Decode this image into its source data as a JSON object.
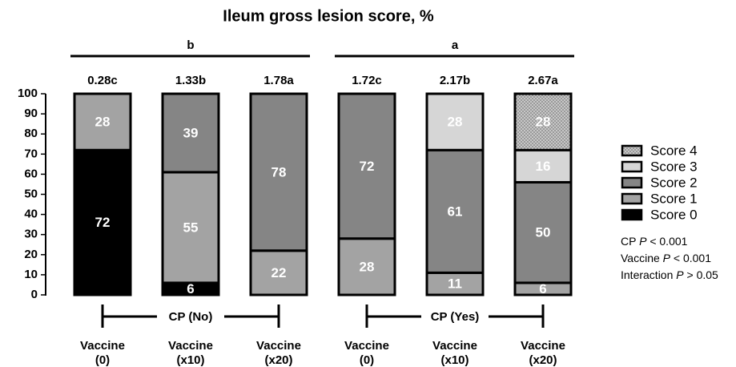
{
  "chart_data": {
    "type": "stacked_bar",
    "title": "Ileum gross lesion score, %",
    "categories": [
      [
        "Vaccine",
        "(0)"
      ],
      [
        "Vaccine",
        "(x10)"
      ],
      [
        "Vaccine",
        "(x20)"
      ],
      [
        "Vaccine",
        "(0)"
      ],
      [
        "Vaccine",
        "(x10)"
      ],
      [
        "Vaccine",
        "(x20)"
      ]
    ],
    "top_labels": [
      "0.28c",
      "1.33b",
      "1.78a",
      "1.72c",
      "2.17b",
      "2.67a"
    ],
    "groups": [
      {
        "label": "CP (No)",
        "letter": "b",
        "from": 0,
        "to": 2
      },
      {
        "label": "CP (Yes)",
        "letter": "a",
        "from": 3,
        "to": 5
      }
    ],
    "series": [
      {
        "name": "Score 0",
        "color": "#000000",
        "values": [
          72,
          6,
          null,
          null,
          null,
          null
        ]
      },
      {
        "name": "Score 1",
        "color": "#a3a3a3",
        "values": [
          28,
          55,
          22,
          28,
          11,
          6
        ]
      },
      {
        "name": "Score 2",
        "color": "#858585",
        "values": [
          null,
          39,
          78,
          72,
          61,
          50
        ]
      },
      {
        "name": "Score 3",
        "color": "#d6d6d6",
        "values": [
          null,
          null,
          null,
          null,
          28,
          16
        ]
      },
      {
        "name": "Score 4",
        "color": "#b5b5b5",
        "pattern": "dots",
        "values": [
          null,
          null,
          null,
          null,
          null,
          28
        ]
      }
    ],
    "ylim": [
      0,
      100
    ],
    "yticks": [
      0,
      10,
      20,
      30,
      40,
      50,
      60,
      70,
      80,
      90,
      100
    ],
    "stats": [
      {
        "pre": "CP ",
        "italic": "P",
        "post": " < 0.001"
      },
      {
        "pre": "Vaccine ",
        "italic": "P",
        "post": " < 0.001"
      },
      {
        "pre": "Interaction ",
        "italic": "P",
        "post": " > 0.05"
      }
    ]
  }
}
